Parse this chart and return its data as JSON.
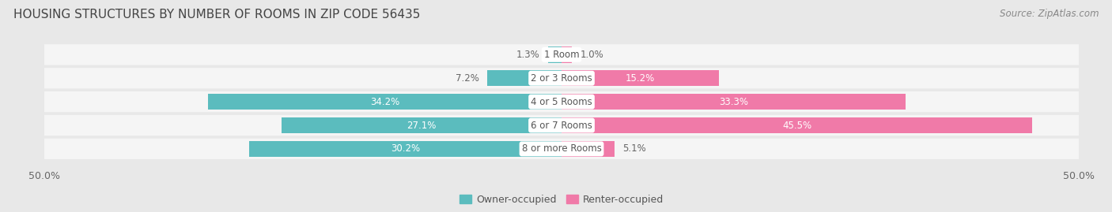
{
  "title": "HOUSING STRUCTURES BY NUMBER OF ROOMS IN ZIP CODE 56435",
  "source": "Source: ZipAtlas.com",
  "categories": [
    "1 Room",
    "2 or 3 Rooms",
    "4 or 5 Rooms",
    "6 or 7 Rooms",
    "8 or more Rooms"
  ],
  "owner_values": [
    1.3,
    7.2,
    34.2,
    27.1,
    30.2
  ],
  "renter_values": [
    1.0,
    15.2,
    33.3,
    45.5,
    5.1
  ],
  "owner_color": "#5bbcbe",
  "renter_color": "#f07aa8",
  "background_color": "#e8e8e8",
  "row_background_color": "#f5f5f5",
  "owner_label": "Owner-occupied",
  "renter_label": "Renter-occupied",
  "xlim": [
    -50,
    50
  ],
  "title_fontsize": 11,
  "source_fontsize": 8.5,
  "label_fontsize": 8.5,
  "category_fontsize": 8.5,
  "legend_fontsize": 9,
  "tick_fontsize": 9
}
